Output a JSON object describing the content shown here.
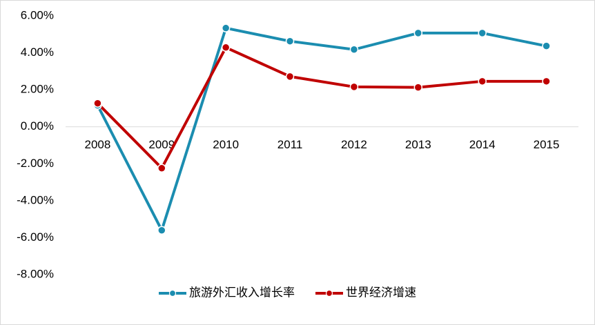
{
  "chart_data": {
    "type": "line",
    "categories": [
      "2008",
      "2009",
      "2010",
      "2011",
      "2012",
      "2013",
      "2014",
      "2015"
    ],
    "series": [
      {
        "name": "旅游外汇收入增长率",
        "color": "#1b8db0",
        "values": [
          1.16,
          -5.6,
          5.34,
          4.63,
          4.18,
          5.07,
          5.07,
          4.37
        ]
      },
      {
        "name": "世界经济增速",
        "color": "#c00000",
        "values": [
          1.27,
          -2.24,
          4.29,
          2.72,
          2.16,
          2.13,
          2.46,
          2.46
        ]
      }
    ],
    "ylim": [
      -8,
      6
    ],
    "yticks": [
      {
        "value": 6,
        "label": "6.00%"
      },
      {
        "value": 4,
        "label": "4.00%"
      },
      {
        "value": 2,
        "label": "2.00%"
      },
      {
        "value": 0,
        "label": "0.00%"
      },
      {
        "value": -2,
        "label": "-2.00%"
      },
      {
        "value": -4,
        "label": "-4.00%"
      },
      {
        "value": -6,
        "label": "-6.00%"
      },
      {
        "value": -8,
        "label": "-8.00%"
      }
    ],
    "legend": "bottom"
  }
}
